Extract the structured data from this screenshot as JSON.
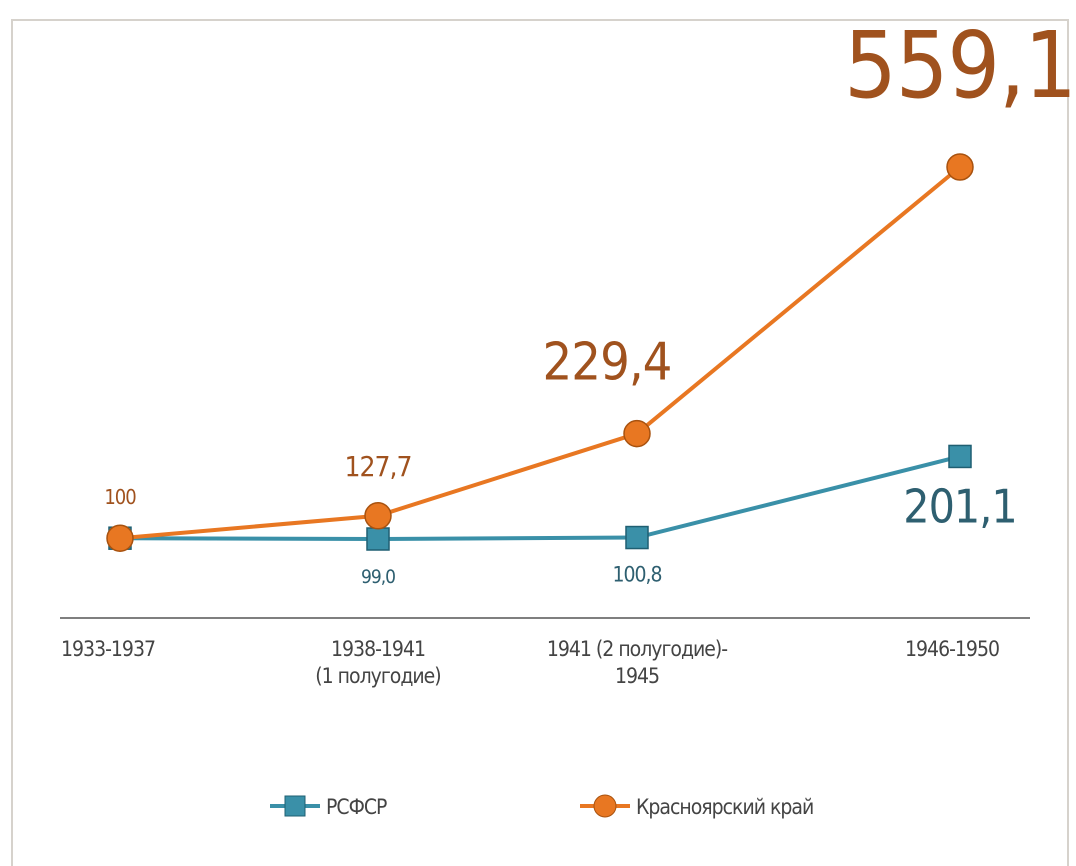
{
  "chart_data": {
    "type": "line",
    "categories": [
      "1933-1937",
      "1938-1941\n(1 полугодие)",
      "1941 (2 полугодие)-\n1945",
      "1946-1950"
    ],
    "series": [
      {
        "name": "РСФСР",
        "color": "#3a90a8",
        "label_color": "#2e5f70",
        "marker": "square",
        "values": [
          100,
          99.0,
          100.8,
          201.1
        ],
        "value_labels": [
          null,
          "99,0",
          "100,8",
          "201,1"
        ]
      },
      {
        "name": "Красноярский край",
        "color": "#e87722",
        "label_color": "#a0521e",
        "marker": "circle",
        "values": [
          100,
          127.7,
          229.4,
          559.1
        ],
        "value_labels": [
          "100",
          "127,7",
          "229,4",
          "559,1"
        ]
      }
    ],
    "legend": "bottom"
  }
}
